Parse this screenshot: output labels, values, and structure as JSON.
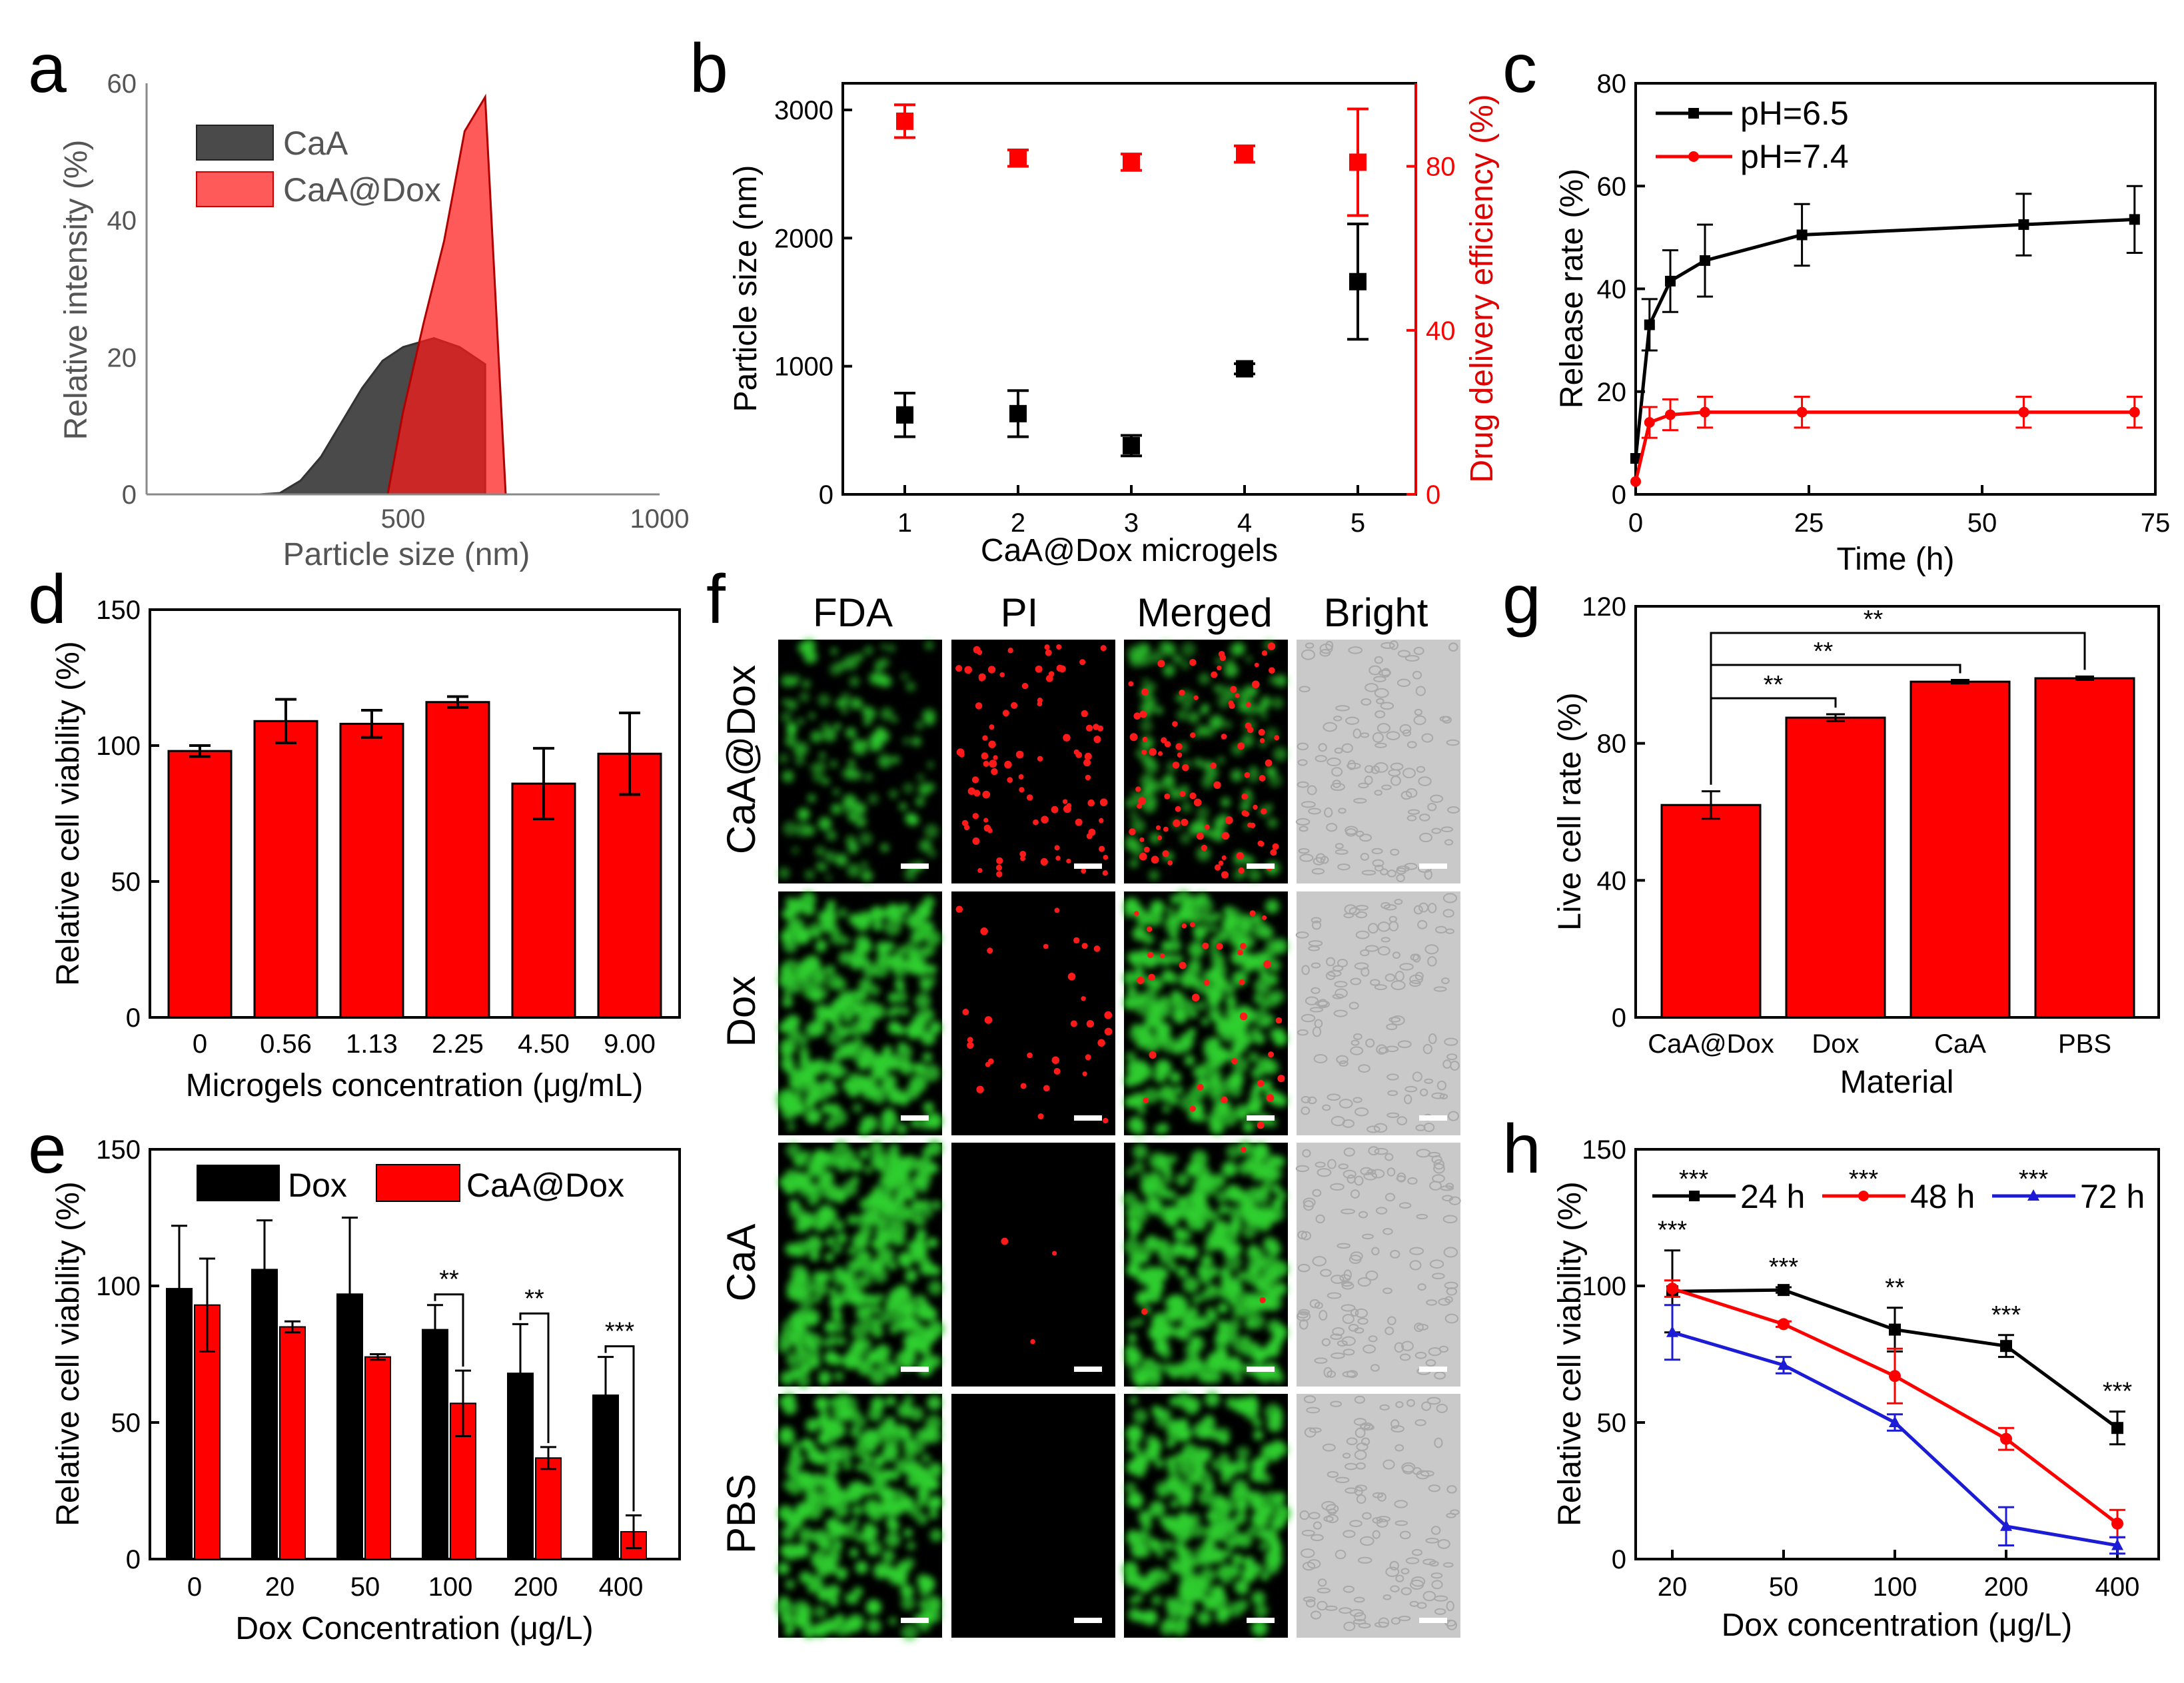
{
  "colors": {
    "red": "#ff0000",
    "black": "#000000",
    "blue": "#1c1cd6",
    "gray": "#4a4a4a",
    "lightred": "#ff5a5a"
  },
  "chart_data": [
    {
      "id": "a",
      "panel": "a",
      "type": "area",
      "xlabel": "Particle size (nm)",
      "ylabel": "Relative intensity (%)",
      "xlim": [
        0,
        1000
      ],
      "ylim": [
        0,
        60
      ],
      "x_ticks": [
        500,
        1000
      ],
      "y_ticks": [
        0,
        20,
        40,
        60
      ],
      "series": [
        {
          "name": "CaA",
          "x": [
            220,
            260,
            300,
            340,
            380,
            420,
            460,
            500,
            560,
            610,
            660
          ],
          "y": [
            0,
            0.2,
            2,
            5.5,
            10.5,
            15.5,
            19.5,
            21.5,
            22.8,
            21.5,
            19
          ]
        },
        {
          "name": "CaA@Dox",
          "x": [
            470,
            500,
            540,
            580,
            620,
            660,
            700
          ],
          "y": [
            0,
            12,
            25,
            37,
            53,
            58,
            0
          ]
        }
      ]
    },
    {
      "id": "b",
      "panel": "b",
      "type": "scatter",
      "categories": [
        "1",
        "2",
        "3",
        "4",
        "5"
      ],
      "xlabel": "CaA@Dox microgels",
      "ylabel": "Particle size (nm)",
      "ylabel_right": "Drug delivery efficiency (%)",
      "ylim": [
        0,
        3000
      ],
      "ylim_right": [
        0,
        93.75
      ],
      "y_ticks": [
        0,
        1000,
        2000,
        3000
      ],
      "y_right_ticks": [
        0,
        40,
        80
      ],
      "series": [
        {
          "name": "Particle size",
          "axis": "left",
          "values": [
            620,
            630,
            380,
            980,
            1660
          ],
          "errors": [
            170,
            180,
            80,
            40,
            450
          ]
        },
        {
          "name": "Drug delivery efficiency",
          "axis": "right",
          "values": [
            91,
            82,
            81,
            83,
            81
          ],
          "errors": [
            4,
            2,
            2,
            2,
            13
          ]
        }
      ]
    },
    {
      "id": "c",
      "panel": "c",
      "type": "line",
      "xlabel": "Time (h)",
      "ylabel": "Release rate (%)",
      "xlim": [
        0,
        75
      ],
      "ylim": [
        0,
        80
      ],
      "x_ticks": [
        0,
        25,
        50,
        75
      ],
      "y_ticks": [
        0,
        20,
        40,
        60,
        80
      ],
      "series": [
        {
          "name": "pH=6.5",
          "x": [
            0,
            2,
            5,
            10,
            24,
            56,
            72
          ],
          "y": [
            7,
            33,
            41.5,
            45.5,
            50.5,
            52.5,
            53.5
          ],
          "errors": [
            0,
            5,
            6,
            7,
            6,
            6,
            6.5
          ]
        },
        {
          "name": "pH=7.4",
          "x": [
            0,
            2,
            5,
            10,
            24,
            56,
            72
          ],
          "y": [
            2.5,
            14,
            15.5,
            16,
            16,
            16,
            16
          ],
          "errors": [
            0,
            3,
            3,
            3,
            3,
            3,
            3
          ]
        }
      ]
    },
    {
      "id": "d",
      "panel": "d",
      "type": "bar",
      "categories": [
        "0",
        "0.56",
        "1.13",
        "2.25",
        "4.50",
        "9.00"
      ],
      "xlabel": "Microgels concentration (μg/mL)",
      "ylabel": "Relative cell viability (%)",
      "ylim": [
        0,
        150
      ],
      "y_ticks": [
        0,
        50,
        100,
        150
      ],
      "series": [
        {
          "name": "Viability",
          "values": [
            98,
            109,
            108,
            116,
            86,
            97
          ],
          "errors": [
            2,
            8,
            5,
            2,
            13,
            15
          ]
        }
      ]
    },
    {
      "id": "e",
      "panel": "e",
      "type": "bar",
      "categories": [
        "0",
        "20",
        "50",
        "100",
        "200",
        "400"
      ],
      "xlabel": "Dox Concentration (μg/L)",
      "ylabel": "Relative cell viability (%)",
      "ylim": [
        0,
        150
      ],
      "y_ticks": [
        0,
        50,
        100,
        150
      ],
      "series": [
        {
          "name": "Dox",
          "values": [
            99,
            106,
            97,
            84,
            68,
            60
          ],
          "errors": [
            23,
            18,
            28,
            9,
            18,
            14
          ]
        },
        {
          "name": "CaA@Dox",
          "values": [
            93,
            85,
            74,
            57,
            37,
            10
          ],
          "errors": [
            17,
            2,
            1,
            12,
            4,
            6
          ]
        }
      ],
      "significance": [
        "",
        "",
        "",
        "**",
        "**",
        "***"
      ]
    },
    {
      "id": "g",
      "panel": "g",
      "type": "bar",
      "categories": [
        "CaA@Dox",
        "Dox",
        "CaA",
        "PBS"
      ],
      "xlabel": "Material",
      "ylabel": "Live cell rate (%)",
      "ylim": [
        0,
        120
      ],
      "y_ticks": [
        0,
        40,
        80,
        120
      ],
      "series": [
        {
          "name": "Live cell rate",
          "values": [
            62,
            87.5,
            98,
            99
          ],
          "errors": [
            4,
            1,
            0.5,
            0.5
          ]
        }
      ],
      "significance": [
        "**",
        "**",
        "**"
      ]
    },
    {
      "id": "h",
      "panel": "h",
      "type": "line",
      "categories": [
        "20",
        "50",
        "100",
        "200",
        "400"
      ],
      "xlabel": "Dox concentration (μg/L)",
      "ylabel": "Relative cell viability (%)",
      "ylim": [
        0,
        150
      ],
      "y_ticks": [
        0,
        50,
        100,
        150
      ],
      "series": [
        {
          "name": "24 h",
          "values": [
            98,
            98.5,
            84,
            78,
            48
          ],
          "errors": [
            15,
            1,
            8,
            4,
            6
          ]
        },
        {
          "name": "48 h",
          "values": [
            99,
            86,
            67,
            44,
            13
          ],
          "errors": [
            3,
            1,
            10,
            4,
            5
          ]
        },
        {
          "name": "72 h",
          "values": [
            83,
            71,
            50,
            12,
            5
          ],
          "errors": [
            10,
            3,
            3,
            7,
            3
          ]
        }
      ],
      "significance": [
        "***",
        "***",
        "**",
        "***",
        "***"
      ],
      "legend_significance": [
        "***",
        "***",
        "***"
      ]
    }
  ],
  "panel_f": {
    "label": "f",
    "columns": [
      "FDA",
      "PI",
      "Merged",
      "Bright"
    ],
    "rows": [
      "CaA@Dox",
      "Dox",
      "CaA",
      "PBS"
    ]
  }
}
